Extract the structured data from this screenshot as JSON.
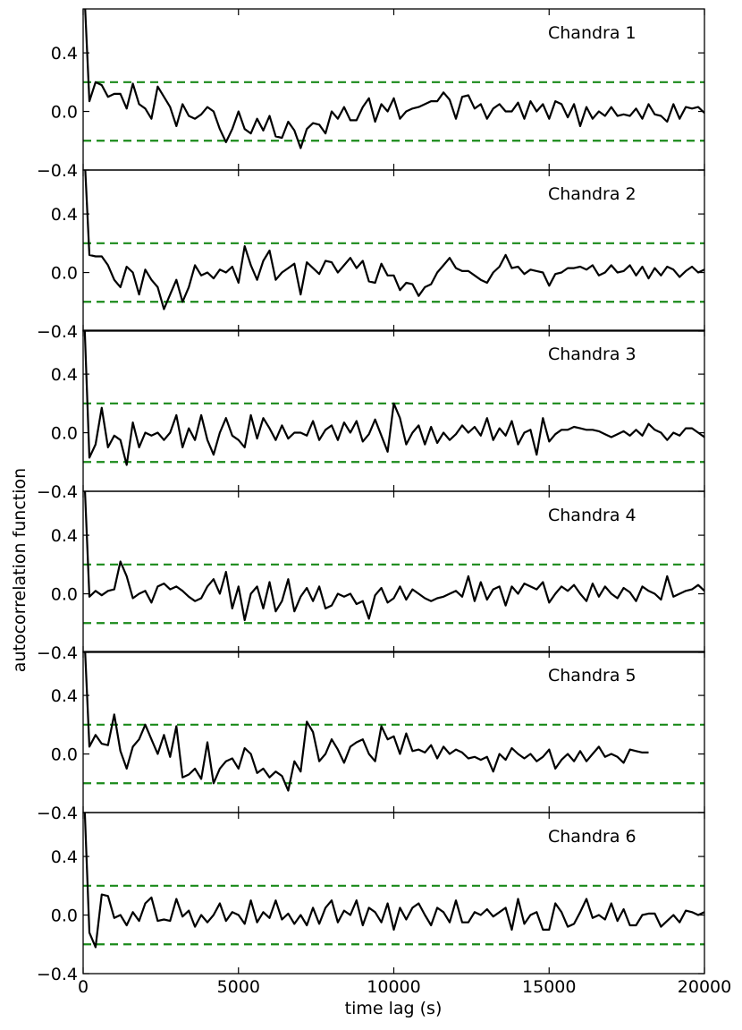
{
  "chart_data": {
    "type": "line",
    "xlabel": "time lag (s)",
    "ylabel": "autocorrelation function",
    "xlim": [
      0,
      20000
    ],
    "ylim": [
      -0.4,
      0.7
    ],
    "x_ticks": [
      0,
      5000,
      10000,
      15000,
      20000
    ],
    "x_tick_labels": [
      "0",
      "5000",
      "10000",
      "15000",
      "20000"
    ],
    "y_ticks": [
      -0.4,
      0.0,
      0.4
    ],
    "y_tick_labels": [
      "−0.4",
      "0.0",
      "0.4"
    ],
    "threshold": 0.2,
    "colors": {
      "series": "#000000",
      "threshold": "#1a8a1a"
    },
    "panels": [
      {
        "title": "Chandra 1",
        "x_start": 0,
        "x_step": 200,
        "values": [
          1.0,
          0.07,
          0.2,
          0.18,
          0.1,
          0.12,
          0.12,
          0.02,
          0.19,
          0.05,
          0.02,
          -0.05,
          0.17,
          0.1,
          0.03,
          -0.1,
          0.05,
          -0.03,
          -0.05,
          -0.02,
          0.03,
          0.0,
          -0.12,
          -0.21,
          -0.12,
          0.0,
          -0.12,
          -0.15,
          -0.05,
          -0.13,
          -0.03,
          -0.17,
          -0.18,
          -0.07,
          -0.13,
          -0.25,
          -0.12,
          -0.08,
          -0.09,
          -0.15,
          0.0,
          -0.05,
          0.03,
          -0.06,
          -0.06,
          0.03,
          0.09,
          -0.07,
          0.05,
          0.0,
          0.09,
          -0.05,
          0.0,
          0.02,
          0.03,
          0.05,
          0.07,
          0.07,
          0.13,
          0.08,
          -0.05,
          0.1,
          0.11,
          0.02,
          0.05,
          -0.05,
          0.02,
          0.05,
          0.0,
          0.0,
          0.06,
          -0.05,
          0.07,
          0.0,
          0.05,
          -0.05,
          0.07,
          0.05,
          -0.04,
          0.05,
          -0.1,
          0.03,
          -0.05,
          0.0,
          -0.03,
          0.03,
          -0.03,
          -0.02,
          -0.03,
          0.02,
          -0.05,
          0.05,
          -0.02,
          -0.03,
          -0.07,
          0.05,
          -0.05,
          0.03,
          0.02,
          0.03,
          -0.01
        ]
      },
      {
        "title": "Chandra 2",
        "x_start": 0,
        "x_step": 200,
        "values": [
          1.0,
          0.12,
          0.11,
          0.11,
          0.05,
          -0.05,
          -0.1,
          0.04,
          0.0,
          -0.15,
          0.02,
          -0.05,
          -0.1,
          -0.25,
          -0.15,
          -0.05,
          -0.2,
          -0.1,
          0.05,
          -0.02,
          0.0,
          -0.04,
          0.02,
          0.0,
          0.04,
          -0.07,
          0.18,
          0.05,
          -0.05,
          0.08,
          0.15,
          -0.05,
          0.0,
          0.03,
          0.06,
          -0.15,
          0.07,
          0.03,
          -0.01,
          0.08,
          0.07,
          0.0,
          0.05,
          0.1,
          0.03,
          0.08,
          -0.06,
          -0.07,
          0.06,
          -0.02,
          -0.02,
          -0.12,
          -0.07,
          -0.08,
          -0.16,
          -0.1,
          -0.08,
          0.0,
          0.05,
          0.1,
          0.03,
          0.01,
          0.01,
          -0.02,
          -0.05,
          -0.07,
          0.0,
          0.04,
          0.12,
          0.03,
          0.04,
          -0.01,
          0.02,
          0.01,
          0.0,
          -0.09,
          -0.01,
          0.0,
          0.03,
          0.03,
          0.04,
          0.02,
          0.05,
          -0.02,
          0.0,
          0.05,
          0.0,
          0.01,
          0.05,
          -0.02,
          0.04,
          -0.04,
          0.03,
          -0.02,
          0.04,
          0.02,
          -0.03,
          0.01,
          0.04,
          0.0,
          0.02,
          0.01,
          0.02
        ]
      },
      {
        "title": "Chandra 3",
        "x_start": 0,
        "x_step": 200,
        "values": [
          1.0,
          -0.17,
          -0.08,
          0.17,
          -0.1,
          -0.02,
          -0.05,
          -0.22,
          0.07,
          -0.1,
          0.0,
          -0.02,
          0.0,
          -0.05,
          0.0,
          0.12,
          -0.1,
          0.03,
          -0.05,
          0.12,
          -0.05,
          -0.15,
          0.0,
          0.1,
          -0.02,
          -0.05,
          -0.1,
          0.12,
          -0.04,
          0.1,
          0.03,
          -0.05,
          0.05,
          -0.04,
          0.0,
          0.0,
          -0.02,
          0.08,
          -0.05,
          0.02,
          0.05,
          -0.05,
          0.07,
          0.0,
          0.08,
          -0.06,
          -0.01,
          0.09,
          -0.02,
          -0.13,
          0.2,
          0.1,
          -0.08,
          0.0,
          0.05,
          -0.08,
          0.04,
          -0.07,
          0.0,
          -0.05,
          -0.01,
          0.05,
          0.0,
          0.04,
          -0.02,
          0.1,
          -0.05,
          0.03,
          -0.02,
          0.08,
          -0.08,
          0.0,
          0.02,
          -0.15,
          0.1,
          -0.06,
          -0.01,
          0.02,
          0.02,
          0.04,
          0.03,
          0.02,
          0.02,
          0.01,
          -0.01,
          -0.03,
          -0.01,
          0.01,
          -0.02,
          0.02,
          -0.02,
          0.06,
          0.02,
          0.0,
          -0.05,
          0.0,
          -0.02,
          0.03,
          0.03,
          0.0,
          -0.03,
          0.0,
          0.02,
          0.01
        ]
      },
      {
        "title": "Chandra 4",
        "x_start": 0,
        "x_step": 200,
        "values": [
          1.0,
          -0.02,
          0.02,
          -0.01,
          0.02,
          0.03,
          0.22,
          0.12,
          -0.03,
          0.0,
          0.02,
          -0.06,
          0.05,
          0.07,
          0.03,
          0.05,
          0.02,
          -0.02,
          -0.05,
          -0.03,
          0.05,
          0.1,
          0.0,
          0.15,
          -0.1,
          0.05,
          -0.18,
          0.0,
          0.05,
          -0.1,
          0.08,
          -0.12,
          -0.05,
          0.1,
          -0.12,
          -0.02,
          0.04,
          -0.05,
          0.05,
          -0.1,
          -0.08,
          0.0,
          -0.02,
          0.0,
          -0.07,
          -0.05,
          -0.17,
          -0.01,
          0.04,
          -0.06,
          -0.03,
          0.05,
          -0.04,
          0.03,
          0.0,
          -0.03,
          -0.05,
          -0.03,
          -0.02,
          0.0,
          0.02,
          -0.02,
          0.12,
          -0.05,
          0.08,
          -0.04,
          0.03,
          0.05,
          -0.08,
          0.05,
          0.0,
          0.07,
          0.05,
          0.03,
          0.08,
          -0.06,
          0.0,
          0.05,
          0.02,
          0.06,
          0.0,
          -0.05,
          0.07,
          -0.02,
          0.05,
          0.0,
          -0.03,
          0.04,
          0.01,
          -0.05,
          0.05,
          0.02,
          0.0,
          -0.04,
          0.12,
          -0.02,
          0.0,
          0.02,
          0.03,
          0.06,
          0.02,
          0.0,
          -0.02
        ]
      },
      {
        "title": "Chandra 5",
        "x_start": 0,
        "x_step": 200,
        "values": [
          1.0,
          0.05,
          0.13,
          0.07,
          0.06,
          0.27,
          0.02,
          -0.1,
          0.05,
          0.1,
          0.2,
          0.1,
          0.0,
          0.13,
          -0.02,
          0.19,
          -0.16,
          -0.14,
          -0.1,
          -0.17,
          0.08,
          -0.2,
          -0.1,
          -0.05,
          -0.03,
          -0.1,
          0.04,
          0.0,
          -0.13,
          -0.1,
          -0.16,
          -0.12,
          -0.15,
          -0.25,
          -0.05,
          -0.12,
          0.22,
          0.15,
          -0.05,
          0.0,
          0.1,
          0.03,
          -0.06,
          0.05,
          0.08,
          0.1,
          0.0,
          -0.05,
          0.19,
          0.1,
          0.12,
          0.0,
          0.14,
          0.02,
          0.03,
          0.01,
          0.06,
          -0.03,
          0.05,
          0.0,
          0.03,
          0.01,
          -0.03,
          -0.02,
          -0.04,
          -0.02,
          -0.12,
          0.0,
          -0.04,
          0.04,
          0.0,
          -0.03,
          0.0,
          -0.05,
          -0.02,
          0.03,
          -0.1,
          -0.04,
          0.0,
          -0.05,
          0.02,
          -0.05,
          0.0,
          0.05,
          -0.02,
          0.0,
          -0.02,
          -0.06,
          0.03,
          0.02,
          0.01,
          0.01
        ]
      },
      {
        "title": "Chandra 6",
        "x_start": 0,
        "x_step": 200,
        "values": [
          1.0,
          -0.12,
          -0.22,
          0.14,
          0.13,
          -0.02,
          0.0,
          -0.07,
          0.02,
          -0.04,
          0.08,
          0.12,
          -0.04,
          -0.03,
          -0.04,
          0.11,
          -0.01,
          0.03,
          -0.08,
          0.0,
          -0.05,
          0.0,
          0.08,
          -0.04,
          0.02,
          0.0,
          -0.06,
          0.1,
          -0.05,
          0.02,
          -0.02,
          0.1,
          -0.03,
          0.01,
          -0.06,
          0.0,
          -0.07,
          0.05,
          -0.06,
          0.05,
          0.1,
          -0.05,
          0.03,
          0.0,
          0.1,
          -0.07,
          0.05,
          0.02,
          -0.05,
          0.08,
          -0.1,
          0.05,
          -0.03,
          0.05,
          0.08,
          0.0,
          -0.07,
          0.05,
          0.02,
          -0.05,
          0.1,
          -0.05,
          -0.05,
          0.02,
          0.0,
          0.04,
          -0.01,
          0.02,
          0.05,
          -0.1,
          0.11,
          -0.06,
          0.0,
          0.02,
          -0.1,
          -0.1,
          0.08,
          0.02,
          -0.08,
          -0.06,
          0.02,
          0.11,
          -0.02,
          0.0,
          -0.03,
          0.08,
          -0.04,
          0.04,
          -0.07,
          -0.07,
          0.0,
          0.01,
          0.01,
          -0.08,
          -0.04,
          0.0,
          -0.05,
          0.03,
          0.02,
          0.0,
          0.02,
          -0.02,
          0.06,
          -0.04,
          -0.02
        ]
      }
    ]
  }
}
